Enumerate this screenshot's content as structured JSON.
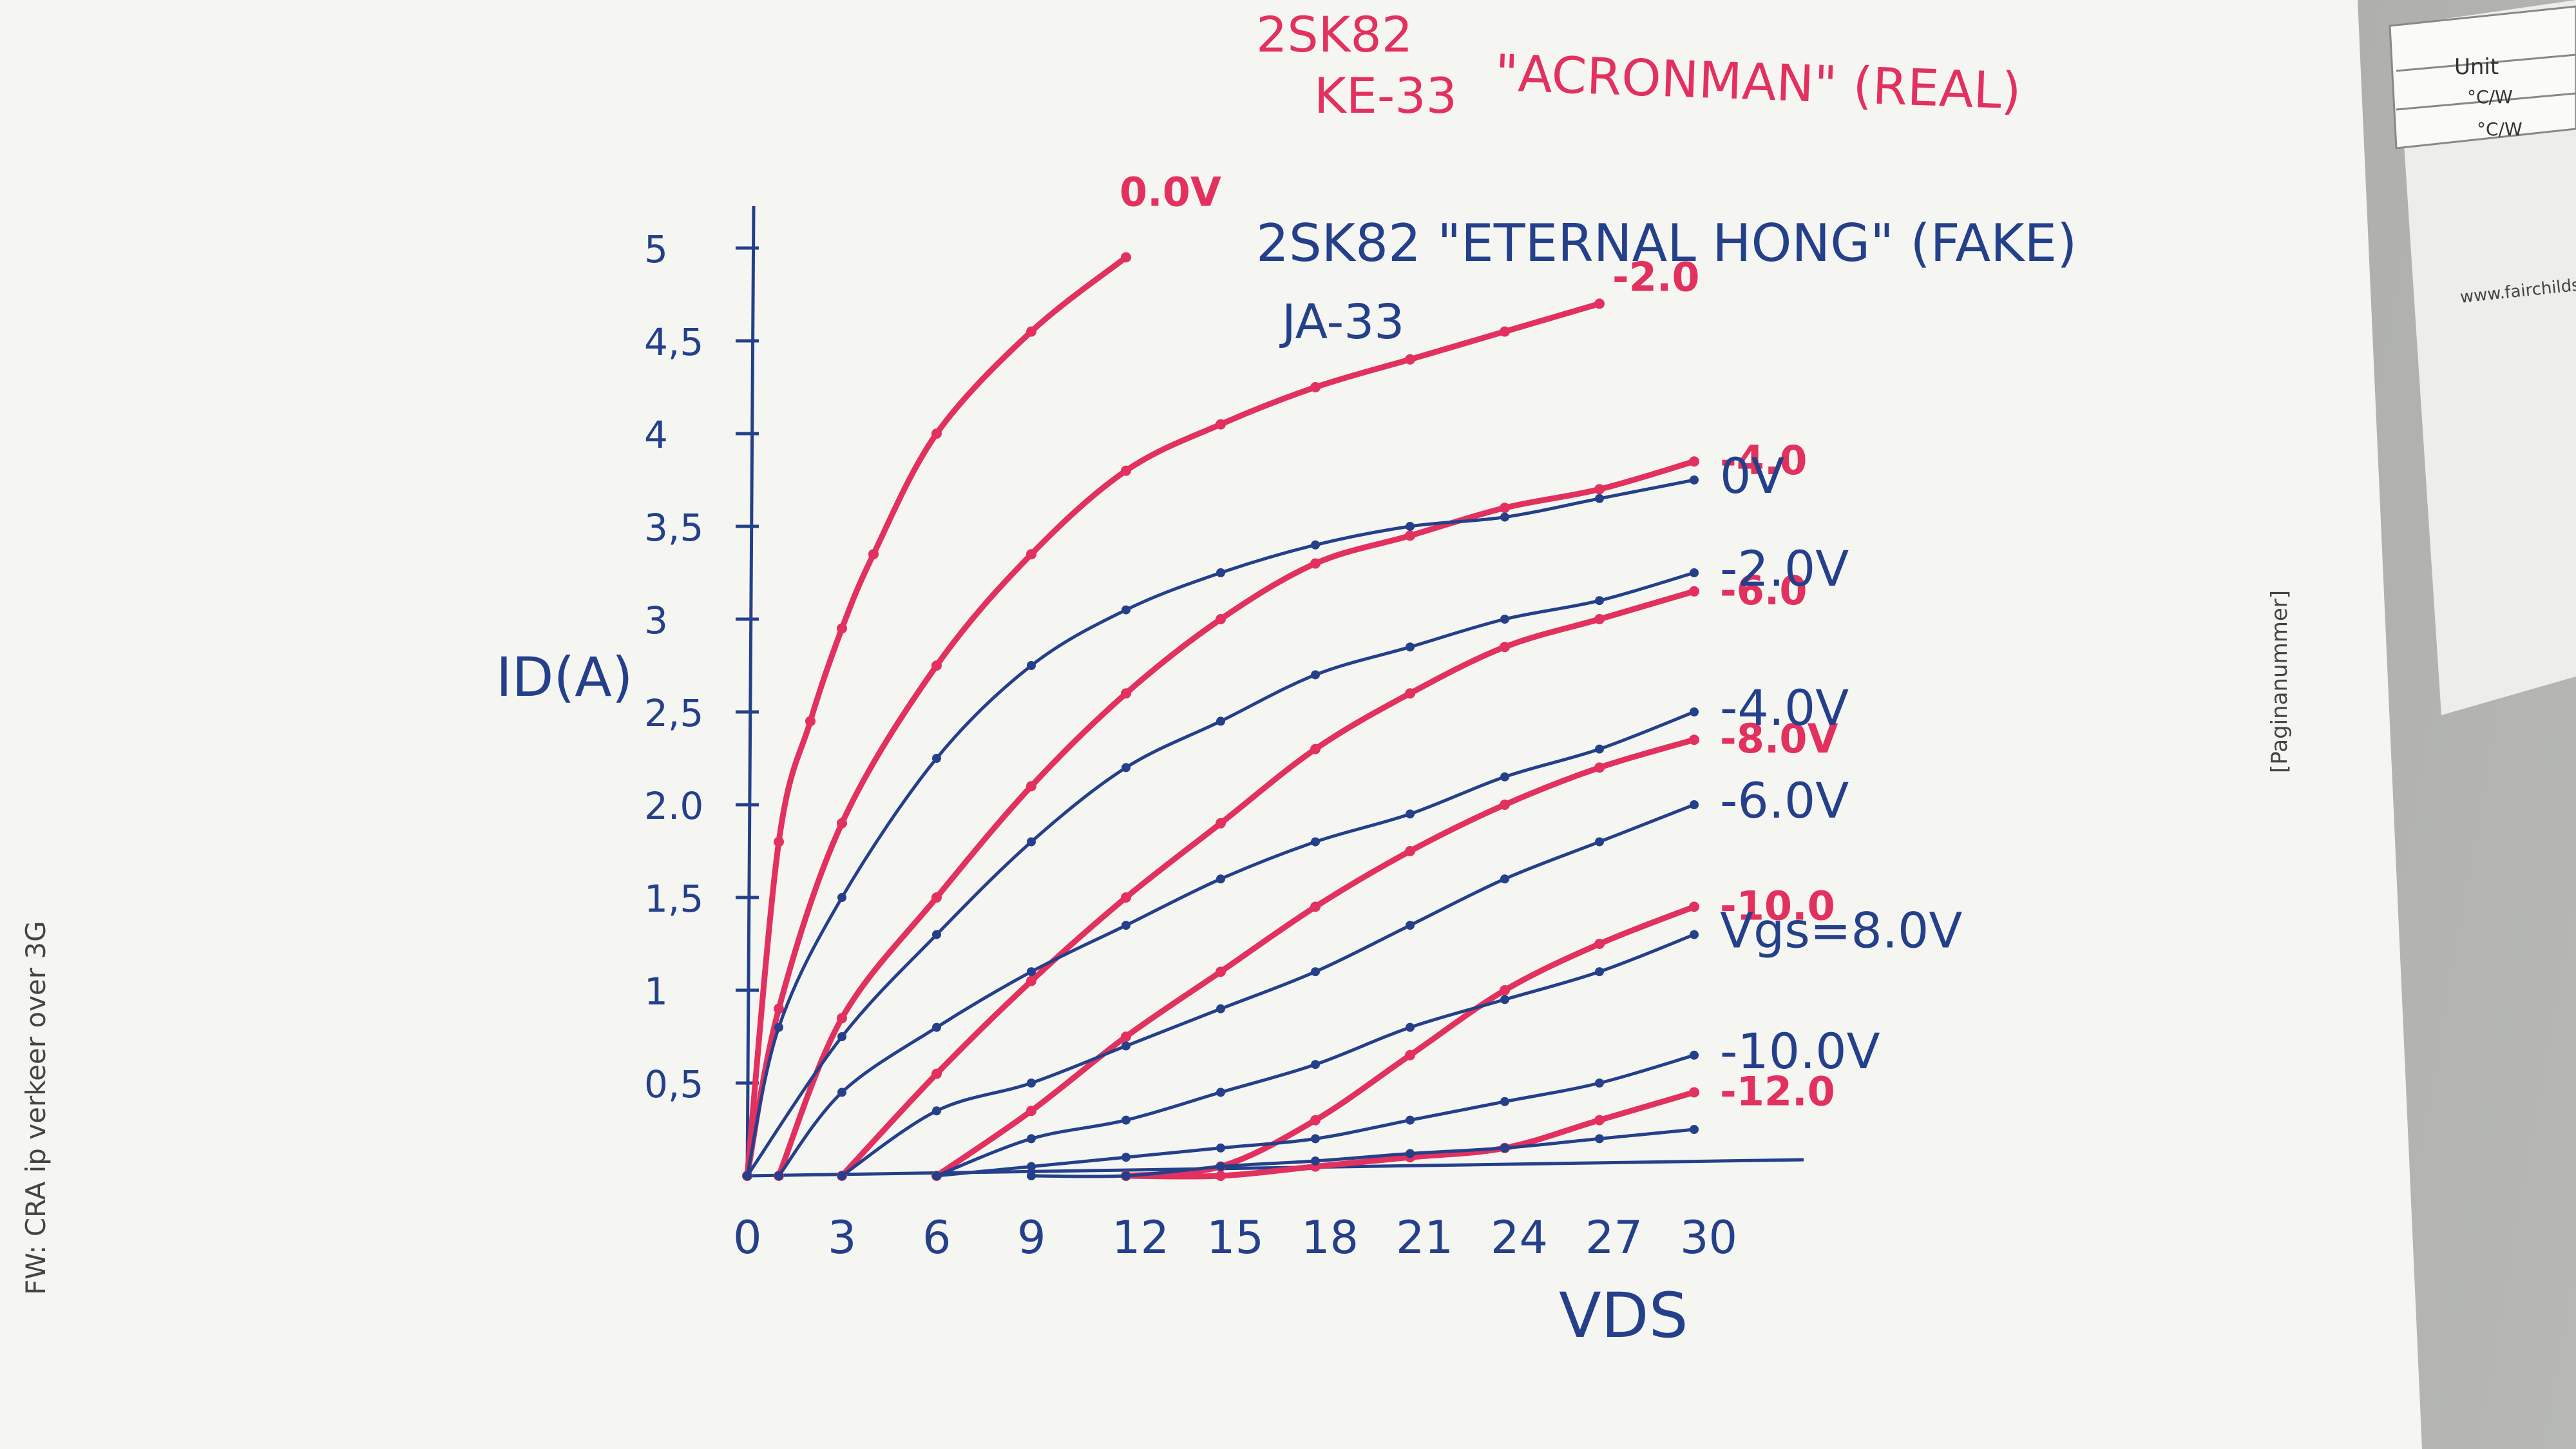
{
  "margin_text": {
    "left_rotated": "FW: CRA ip verkeer over 3G",
    "right_rotated": "[Paginanummer]"
  },
  "datasheet_corner": {
    "header": "Unit",
    "cells": [
      "°C/W",
      "°C/W"
    ],
    "url": "www.fairchilds"
  },
  "chart_data": {
    "type": "line",
    "title_real_line1": "2SK82",
    "title_real_line2": "KE-33",
    "title_real_name": "\"ACRONMAN\" (REAL)",
    "title_fake_line1": "2SK82 \"ETERNAL HONG\" (FAKE)",
    "title_fake_line2": "JA-33",
    "xlabel": "VDS",
    "ylabel": "ID(A)",
    "xlim": [
      0,
      30
    ],
    "ylim": [
      0,
      5
    ],
    "x_ticks": [
      "0",
      "3",
      "6",
      "9",
      "12",
      "15",
      "18",
      "21",
      "24",
      "27",
      "30"
    ],
    "y_ticks": [
      {
        "label": "0,5",
        "value": 0.5
      },
      {
        "label": "1",
        "value": 1
      },
      {
        "label": "1,5",
        "value": 1.5
      },
      {
        "label": "2.0",
        "value": 2.0
      },
      {
        "label": "2,5",
        "value": 2.5
      },
      {
        "label": "3",
        "value": 3
      },
      {
        "label": "3,5",
        "value": 3.5
      },
      {
        "label": "4",
        "value": 4
      },
      {
        "label": "4,5",
        "value": 4.5
      },
      {
        "label": "5",
        "value": 5
      }
    ],
    "series": [
      {
        "name": "0.0V",
        "group": "real",
        "color": "#e2315e",
        "x": [
          0,
          1,
          2,
          3,
          4,
          6,
          9,
          12
        ],
        "y": [
          0,
          1.8,
          2.45,
          2.95,
          3.35,
          4.0,
          4.55,
          4.95
        ]
      },
      {
        "name": "-2.0",
        "group": "real",
        "color": "#e2315e",
        "x": [
          0,
          1,
          3,
          6,
          9,
          12,
          15,
          18,
          21,
          24,
          27
        ],
        "y": [
          0,
          0.9,
          1.9,
          2.75,
          3.35,
          3.8,
          4.05,
          4.25,
          4.4,
          4.55,
          4.7
        ]
      },
      {
        "name": "-4.0",
        "group": "real",
        "color": "#e2315e",
        "x": [
          1,
          3,
          6,
          9,
          12,
          15,
          18,
          21,
          24,
          27,
          30
        ],
        "y": [
          0,
          0.85,
          1.5,
          2.1,
          2.6,
          3.0,
          3.3,
          3.45,
          3.6,
          3.7,
          3.85
        ]
      },
      {
        "name": "-6.0",
        "group": "real",
        "color": "#e2315e",
        "x": [
          3,
          6,
          9,
          12,
          15,
          18,
          21,
          24,
          27,
          30
        ],
        "y": [
          0,
          0.55,
          1.05,
          1.5,
          1.9,
          2.3,
          2.6,
          2.85,
          3.0,
          3.15
        ]
      },
      {
        "name": "-8.0V",
        "group": "real",
        "color": "#e2315e",
        "x": [
          6,
          9,
          12,
          15,
          18,
          21,
          24,
          27,
          30
        ],
        "y": [
          0,
          0.35,
          0.75,
          1.1,
          1.45,
          1.75,
          2.0,
          2.2,
          2.35
        ]
      },
      {
        "name": "-10.0",
        "group": "real",
        "color": "#e2315e",
        "x": [
          12,
          15,
          18,
          21,
          24,
          27,
          30
        ],
        "y": [
          0,
          0.05,
          0.3,
          0.65,
          1.0,
          1.25,
          1.45
        ]
      },
      {
        "name": "-12.0",
        "group": "real",
        "color": "#e2315e",
        "x": [
          12,
          15,
          18,
          21,
          24,
          27,
          30
        ],
        "y": [
          0,
          0,
          0.05,
          0.1,
          0.15,
          0.3,
          0.45
        ]
      },
      {
        "name": "0V",
        "group": "fake",
        "color": "#24408a",
        "x": [
          0,
          1,
          3,
          6,
          9,
          12,
          15,
          18,
          21,
          24,
          27,
          30
        ],
        "y": [
          0,
          0.8,
          1.5,
          2.25,
          2.75,
          3.05,
          3.25,
          3.4,
          3.5,
          3.55,
          3.65,
          3.75
        ]
      },
      {
        "name": "-2.0V",
        "group": "fake",
        "color": "#24408a",
        "x": [
          0,
          3,
          6,
          9,
          12,
          15,
          18,
          21,
          24,
          27,
          30
        ],
        "y": [
          0,
          0.75,
          1.3,
          1.8,
          2.2,
          2.45,
          2.7,
          2.85,
          3.0,
          3.1,
          3.25
        ]
      },
      {
        "name": "-4.0V",
        "group": "fake",
        "color": "#24408a",
        "x": [
          1,
          3,
          6,
          9,
          12,
          15,
          18,
          21,
          24,
          27,
          30
        ],
        "y": [
          0,
          0.45,
          0.8,
          1.1,
          1.35,
          1.6,
          1.8,
          1.95,
          2.15,
          2.3,
          2.5
        ]
      },
      {
        "name": "-6.0V",
        "group": "fake",
        "color": "#24408a",
        "x": [
          3,
          6,
          9,
          12,
          15,
          18,
          21,
          24,
          27,
          30
        ],
        "y": [
          0,
          0.35,
          0.5,
          0.7,
          0.9,
          1.1,
          1.35,
          1.6,
          1.8,
          2.0
        ]
      },
      {
        "name": "Vgs=8.0V",
        "group": "fake",
        "color": "#24408a",
        "x": [
          6,
          9,
          12,
          15,
          18,
          21,
          24,
          27,
          30
        ],
        "y": [
          0,
          0.2,
          0.3,
          0.45,
          0.6,
          0.8,
          0.95,
          1.1,
          1.3
        ]
      },
      {
        "name": "-10.0V",
        "group": "fake",
        "color": "#24408a",
        "x": [
          6,
          9,
          12,
          15,
          18,
          21,
          24,
          27,
          30
        ],
        "y": [
          0,
          0.05,
          0.1,
          0.15,
          0.2,
          0.3,
          0.4,
          0.5,
          0.65
        ]
      },
      {
        "name": "",
        "group": "fake",
        "color": "#24408a",
        "x": [
          9,
          12,
          15,
          18,
          21,
          24,
          27,
          30
        ],
        "y": [
          0,
          0,
          0.05,
          0.08,
          0.12,
          0.15,
          0.2,
          0.25
        ]
      }
    ],
    "legend": "labels at line ends",
    "grid": false
  }
}
